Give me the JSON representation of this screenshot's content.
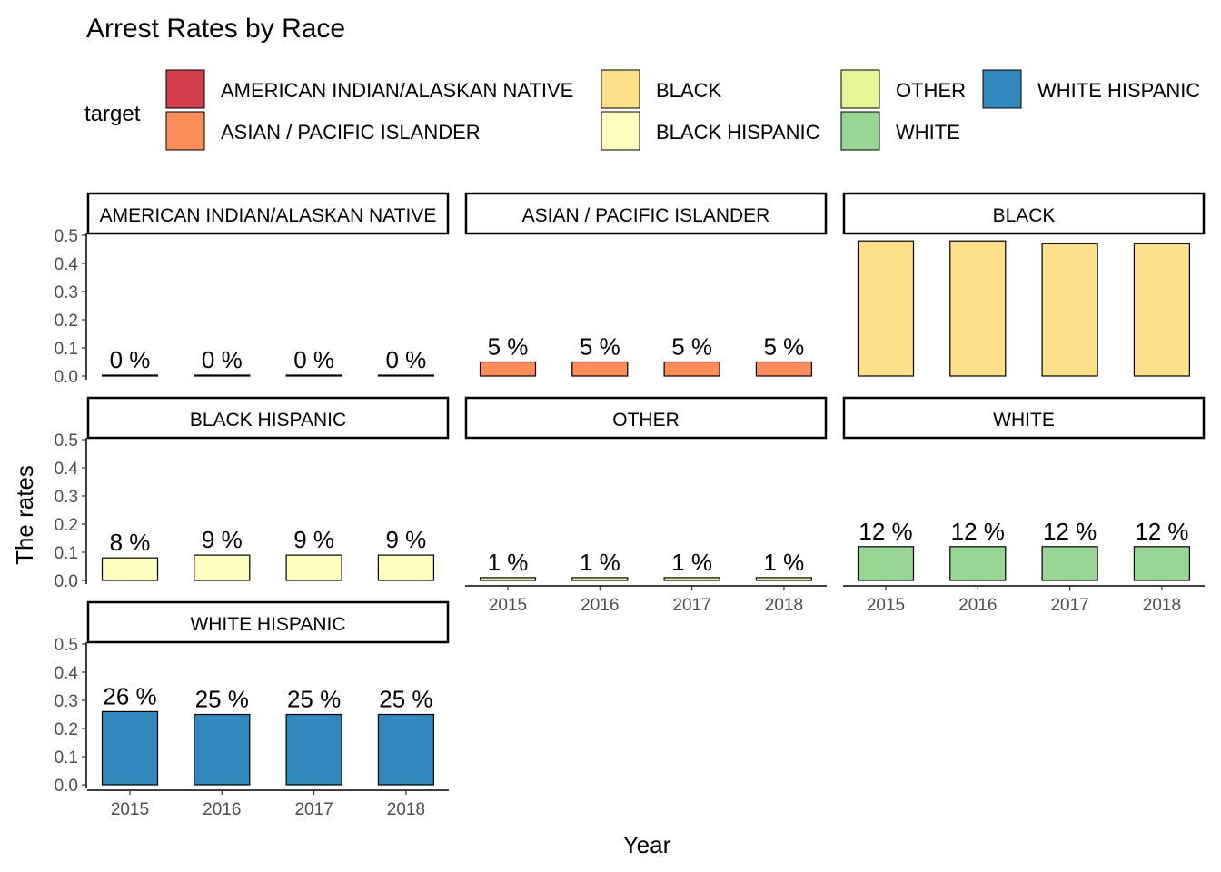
{
  "chart_data": {
    "type": "bar",
    "title": "Arrest Rates by Race",
    "xlabel": "Year",
    "ylabel": "The rates",
    "legend_title": "target",
    "legend_position": "top",
    "ylim": [
      0,
      0.5
    ],
    "yticks": [
      "0.0",
      "0.1",
      "0.2",
      "0.3",
      "0.4",
      "0.5"
    ],
    "categories": [
      "2015",
      "2016",
      "2017",
      "2018"
    ],
    "grid": false,
    "series": [
      {
        "name": "AMERICAN INDIAN/ALASKAN NATIVE",
        "color": "#d53e4f",
        "values": [
          0.002,
          0.002,
          0.002,
          0.002
        ],
        "labels": [
          "0 %",
          "0 %",
          "0 %",
          "0 %"
        ]
      },
      {
        "name": "ASIAN / PACIFIC ISLANDER",
        "color": "#fc8d59",
        "values": [
          0.05,
          0.05,
          0.05,
          0.05
        ],
        "labels": [
          "5 %",
          "5 %",
          "5 %",
          "5 %"
        ]
      },
      {
        "name": "BLACK",
        "color": "#fee08b",
        "values": [
          0.48,
          0.48,
          0.47,
          0.47
        ],
        "labels": []
      },
      {
        "name": "BLACK HISPANIC",
        "color": "#ffffbf",
        "values": [
          0.08,
          0.09,
          0.09,
          0.09
        ],
        "labels": [
          "8 %",
          "9 %",
          "9 %",
          "9 %"
        ]
      },
      {
        "name": "OTHER",
        "color": "#e6f598",
        "values": [
          0.01,
          0.01,
          0.01,
          0.01
        ],
        "labels": [
          "1 %",
          "1 %",
          "1 %",
          "1 %"
        ]
      },
      {
        "name": "WHITE",
        "color": "#99d594",
        "values": [
          0.12,
          0.12,
          0.12,
          0.12
        ],
        "labels": [
          "12 %",
          "12 %",
          "12 %",
          "12 %"
        ]
      },
      {
        "name": "WHITE HISPANIC",
        "color": "#3288bd",
        "values": [
          0.26,
          0.25,
          0.25,
          0.25
        ],
        "labels": [
          "26 %",
          "25 %",
          "25 %",
          "25 %"
        ]
      }
    ]
  }
}
